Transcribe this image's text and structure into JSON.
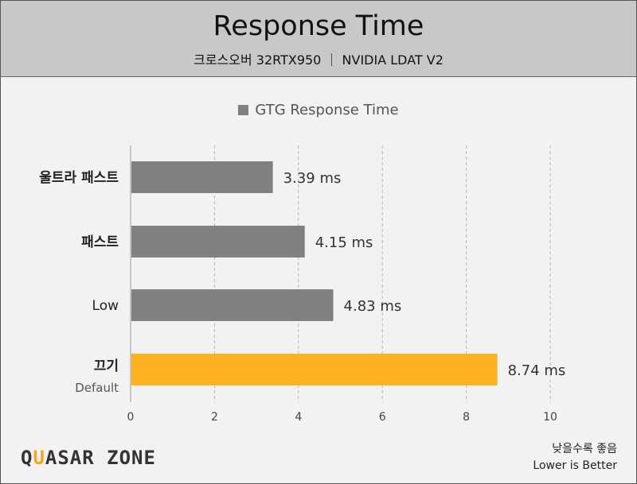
{
  "header": {
    "title": "Response Time",
    "subtitle": "크로스오버 32RTX950 ｜ NVIDIA LDAT V2"
  },
  "colors": {
    "header_bg": "#c8c8c8",
    "bar_default": "#808080",
    "bar_highlight": "#fdb11e",
    "gridline": "#b5b5b5"
  },
  "chart_data": {
    "type": "bar",
    "orientation": "horizontal",
    "title": "Response Time",
    "subtitle": "크로스오버 32RTX950 ｜ NVIDIA LDAT V2",
    "legend": [
      "GTG Response Time"
    ],
    "legend_position": "top-center",
    "categories": [
      {
        "label": "울트라 패스트",
        "sublabel": ""
      },
      {
        "label": "패스트",
        "sublabel": ""
      },
      {
        "label": "Low",
        "sublabel": ""
      },
      {
        "label": "끄기",
        "sublabel": "Default"
      }
    ],
    "series": [
      {
        "name": "GTG Response Time",
        "values": [
          3.39,
          4.15,
          4.83,
          8.74
        ]
      }
    ],
    "value_labels": [
      "3.39 ms",
      "4.15 ms",
      "4.83 ms",
      "8.74 ms"
    ],
    "highlight_index": 3,
    "xlim": [
      0,
      10
    ],
    "xticks": [
      "0",
      "2",
      "4",
      "6",
      "8",
      "10"
    ],
    "grid": "vertical dashed"
  },
  "footer": {
    "brand_part1": "Q",
    "brand_accent": "U",
    "brand_part2": "ASAR ZONE",
    "note_line1": "낮을수록 좋음",
    "note_line2": "Lower is Better"
  }
}
